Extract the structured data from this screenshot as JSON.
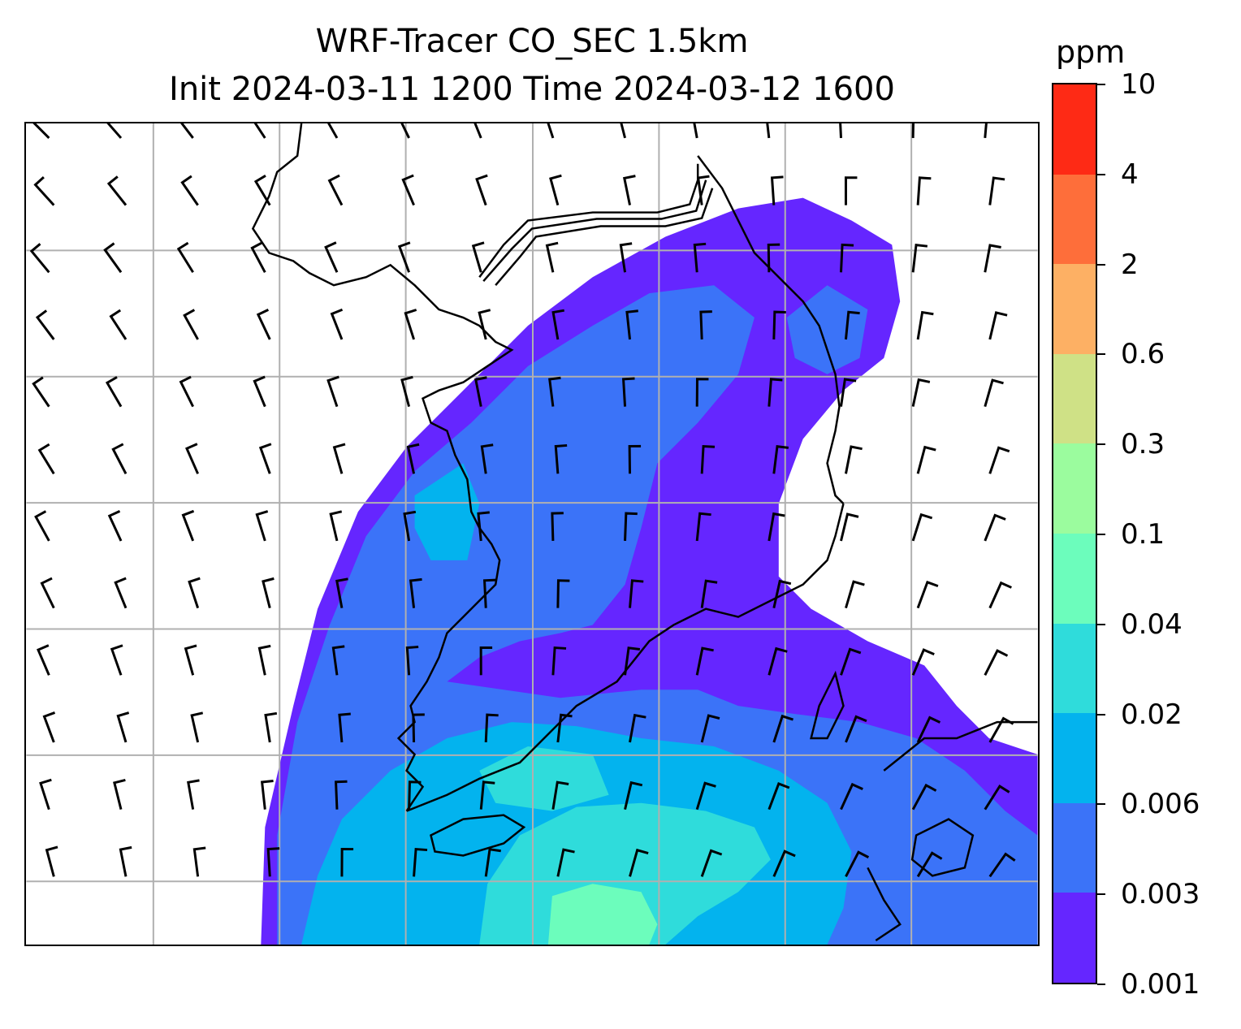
{
  "title": {
    "line1": "WRF-Tracer CO_SEC 1.5km",
    "line2": "Init 2024-03-11 1200 Time 2024-03-12 1600"
  },
  "colorbar": {
    "units": "ppm",
    "ticks": [
      "0.001",
      "0.003",
      "0.006",
      "0.02",
      "0.04",
      "0.1",
      "0.3",
      "0.6",
      "2",
      "4",
      "10"
    ],
    "colors": [
      "#6526ff",
      "#3b73f8",
      "#03b3ee",
      "#2fdcdb",
      "#6cfdbc",
      "#9bfc9e",
      "#cfe186",
      "#fdb064",
      "#fe6e3a",
      "#fe2a15"
    ]
  },
  "map": {
    "variable": "CO_SEC tracer concentration",
    "overlays": [
      "filled-contours",
      "coastlines",
      "gridlines",
      "wind-barbs"
    ],
    "gridline_color": "#b0b0b0"
  }
}
